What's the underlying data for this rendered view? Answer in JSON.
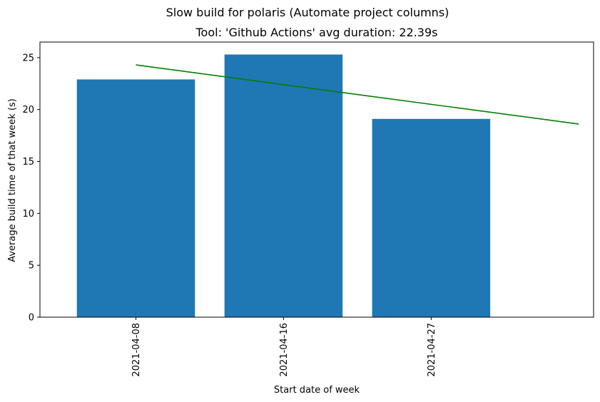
{
  "chart_data": {
    "type": "bar",
    "title": "Slow build for polaris (Automate project columns)",
    "subtitle": "Tool: 'Github Actions' avg duration: 22.39s",
    "xlabel": "Start date of week",
    "ylabel": "Average build time of that week (s)",
    "categories": [
      "2021-04-08",
      "2021-04-16",
      "2021-04-27"
    ],
    "values": [
      22.9,
      25.3,
      19.1
    ],
    "bar_color": "#1f77b4",
    "ylim": [
      0,
      26.5
    ],
    "yticks": [
      0,
      5,
      10,
      15,
      20,
      25
    ],
    "xlim": [
      -0.65,
      3.1
    ],
    "trend_line": {
      "color": "#008000",
      "x": [
        0,
        3
      ],
      "y": [
        24.3,
        18.6
      ]
    },
    "grid": false,
    "legend": "none"
  }
}
